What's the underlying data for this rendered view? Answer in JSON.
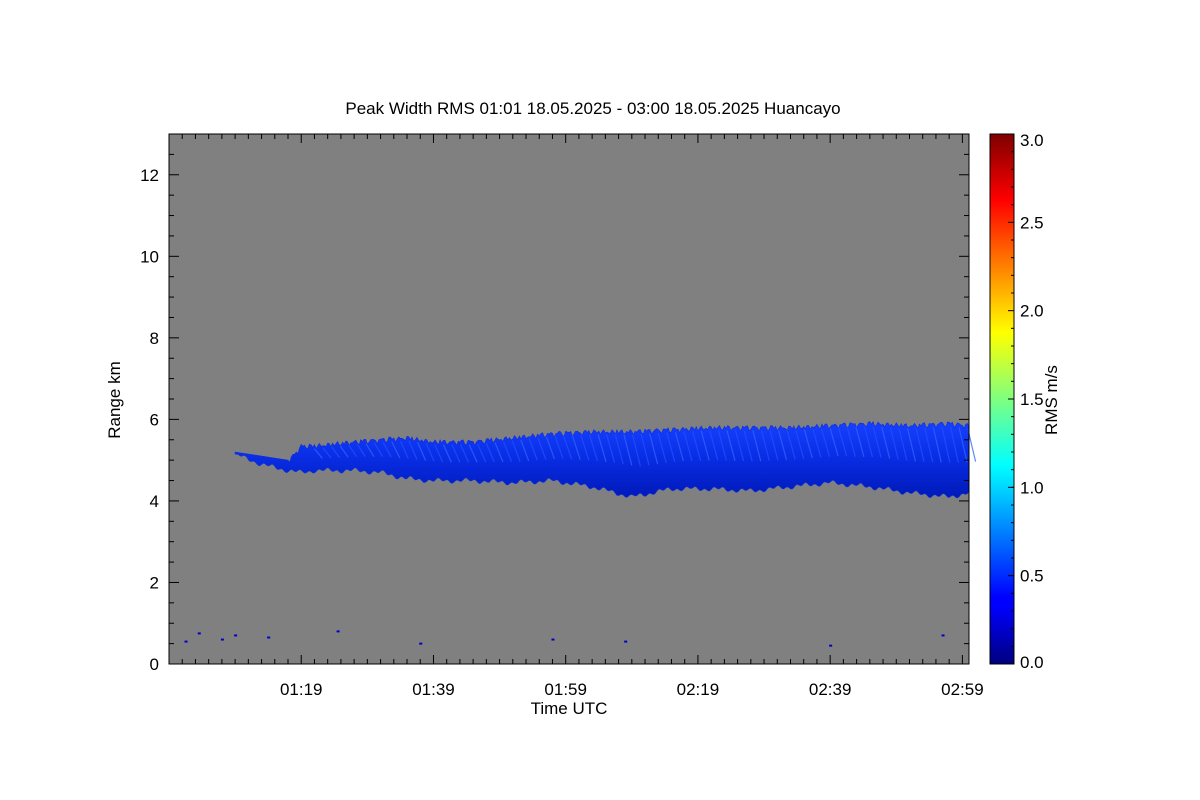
{
  "chart_data": {
    "type": "heatmap",
    "title": "Peak Width RMS   01:01 18.05.2025 - 03:00 18.05.2025 Huancayo",
    "xlabel": "Time UTC",
    "ylabel": "Range km",
    "x_tick_labels": [
      "01:19",
      "01:39",
      "01:59",
      "02:19",
      "02:39",
      "02:59"
    ],
    "x_tick_minutes": [
      78,
      98,
      118,
      138,
      158,
      178
    ],
    "xlim_minutes": [
      58,
      179
    ],
    "y_ticks": [
      0,
      2,
      4,
      6,
      8,
      10,
      12
    ],
    "y_tick_labels": [
      "0",
      "2",
      "4",
      "6",
      "8",
      "10",
      "12"
    ],
    "ylim": [
      0,
      13
    ],
    "background_color": "#808080",
    "colorbar": {
      "label": "RMS m/s",
      "range": [
        0,
        3
      ],
      "ticks": [
        0,
        0.5,
        1,
        1.5,
        2,
        2.5,
        3
      ],
      "tick_labels": [
        "0.0",
        "0.5",
        "1.0",
        "1.5",
        "2.0",
        "2.5",
        "3.0"
      ],
      "colormap": "jet"
    },
    "layer": {
      "typical_value": 0.4,
      "time_minutes": [
        68,
        72,
        76,
        78,
        80,
        86,
        90,
        94,
        98,
        104,
        110,
        116,
        122,
        128,
        134,
        140,
        146,
        152,
        158,
        164,
        170,
        176,
        179
      ],
      "top_km": [
        5.2,
        5.1,
        5.0,
        5.4,
        5.4,
        5.5,
        5.55,
        5.6,
        5.5,
        5.5,
        5.6,
        5.7,
        5.75,
        5.75,
        5.8,
        5.85,
        5.85,
        5.85,
        5.9,
        5.95,
        5.9,
        5.95,
        5.9
      ],
      "bottom_km": [
        5.15,
        4.9,
        4.75,
        4.7,
        4.75,
        4.75,
        4.7,
        4.55,
        4.5,
        4.5,
        4.45,
        4.5,
        4.35,
        4.1,
        4.3,
        4.3,
        4.25,
        4.35,
        4.45,
        4.35,
        4.2,
        4.1,
        4.2
      ]
    },
    "scatter_points": [
      {
        "t": 60.5,
        "km": 0.55,
        "value": 0.3
      },
      {
        "t": 62.5,
        "km": 0.75,
        "value": 0.3
      },
      {
        "t": 66,
        "km": 0.6,
        "value": 0.3
      },
      {
        "t": 68,
        "km": 0.7,
        "value": 0.3
      },
      {
        "t": 73,
        "km": 0.65,
        "value": 0.3
      },
      {
        "t": 83.5,
        "km": 0.8,
        "value": 0.3
      },
      {
        "t": 96,
        "km": 0.5,
        "value": 0.3
      },
      {
        "t": 116,
        "km": 0.6,
        "value": 0.3
      },
      {
        "t": 127,
        "km": 0.55,
        "value": 0.3
      },
      {
        "t": 158,
        "km": 0.45,
        "value": 0.3
      },
      {
        "t": 175,
        "km": 0.7,
        "value": 0.3
      }
    ]
  }
}
